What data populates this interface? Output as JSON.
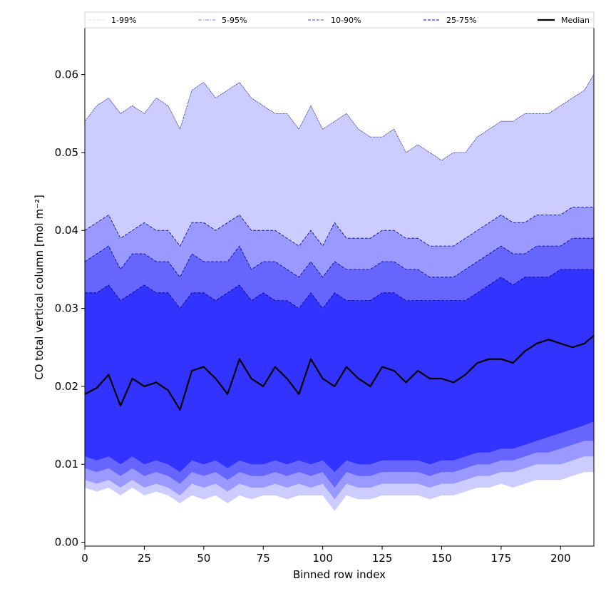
{
  "chart_data": {
    "type": "area",
    "xlabel": "Binned row index",
    "ylabel": "CO total vertical column [mol m⁻²]",
    "xlim": [
      0,
      214
    ],
    "ylim": [
      -0.0005,
      0.066
    ],
    "x_ticks": [
      0,
      25,
      50,
      75,
      100,
      125,
      150,
      175,
      200
    ],
    "x_tick_labels": [
      "0",
      "25",
      "50",
      "75",
      "100",
      "125",
      "150",
      "175",
      "200"
    ],
    "y_ticks": [
      0.0,
      0.01,
      0.02,
      0.03,
      0.04,
      0.05,
      0.06
    ],
    "y_tick_labels": [
      "0.00",
      "0.01",
      "0.02",
      "0.03",
      "0.04",
      "0.05",
      "0.06"
    ],
    "legend_position": "top",
    "legend": [
      {
        "label": "1-99%",
        "style": "dotted",
        "color": "#ccccff"
      },
      {
        "label": "5-95%",
        "style": "dashdot",
        "color": "#9999ff"
      },
      {
        "label": "10-90%",
        "style": "dashed",
        "color": "#6666ff"
      },
      {
        "label": "25-75%",
        "style": "dashed",
        "color": "#3333ff"
      },
      {
        "label": "Median",
        "style": "solid",
        "color": "#000000"
      }
    ],
    "x": [
      0,
      5,
      10,
      15,
      20,
      25,
      30,
      35,
      40,
      45,
      50,
      55,
      60,
      65,
      70,
      75,
      80,
      85,
      90,
      95,
      100,
      105,
      110,
      115,
      120,
      125,
      130,
      135,
      140,
      145,
      150,
      155,
      160,
      165,
      170,
      175,
      180,
      185,
      190,
      195,
      200,
      205,
      210,
      214
    ],
    "bands": [
      {
        "name": "1-99%",
        "color": "#ccccff",
        "upper": [
          0.054,
          0.056,
          0.057,
          0.055,
          0.056,
          0.055,
          0.057,
          0.056,
          0.053,
          0.058,
          0.059,
          0.057,
          0.058,
          0.059,
          0.057,
          0.056,
          0.055,
          0.055,
          0.053,
          0.056,
          0.053,
          0.054,
          0.055,
          0.053,
          0.052,
          0.052,
          0.053,
          0.05,
          0.051,
          0.05,
          0.049,
          0.05,
          0.05,
          0.052,
          0.053,
          0.054,
          0.054,
          0.055,
          0.055,
          0.055,
          0.056,
          0.057,
          0.058,
          0.06
        ],
        "lower": [
          0.007,
          0.0065,
          0.007,
          0.006,
          0.007,
          0.006,
          0.0065,
          0.006,
          0.005,
          0.006,
          0.0055,
          0.006,
          0.005,
          0.006,
          0.0055,
          0.006,
          0.006,
          0.0055,
          0.006,
          0.006,
          0.006,
          0.004,
          0.006,
          0.0055,
          0.0055,
          0.006,
          0.006,
          0.006,
          0.006,
          0.0055,
          0.006,
          0.006,
          0.0065,
          0.007,
          0.007,
          0.0075,
          0.007,
          0.0075,
          0.008,
          0.008,
          0.008,
          0.0085,
          0.009,
          0.009
        ]
      },
      {
        "name": "5-95%",
        "color": "#9999ff",
        "upper": [
          0.04,
          0.041,
          0.042,
          0.039,
          0.04,
          0.041,
          0.04,
          0.04,
          0.038,
          0.041,
          0.041,
          0.04,
          0.041,
          0.042,
          0.04,
          0.04,
          0.04,
          0.039,
          0.038,
          0.04,
          0.038,
          0.041,
          0.039,
          0.039,
          0.039,
          0.04,
          0.04,
          0.039,
          0.039,
          0.038,
          0.038,
          0.038,
          0.039,
          0.04,
          0.041,
          0.042,
          0.041,
          0.041,
          0.042,
          0.042,
          0.042,
          0.043,
          0.043,
          0.043
        ],
        "lower": [
          0.008,
          0.0075,
          0.008,
          0.007,
          0.008,
          0.007,
          0.0075,
          0.007,
          0.006,
          0.0075,
          0.007,
          0.0075,
          0.0065,
          0.0075,
          0.007,
          0.007,
          0.0075,
          0.007,
          0.0075,
          0.007,
          0.0075,
          0.0055,
          0.0075,
          0.007,
          0.007,
          0.0075,
          0.0075,
          0.0075,
          0.0075,
          0.007,
          0.0075,
          0.0075,
          0.008,
          0.0085,
          0.0085,
          0.009,
          0.009,
          0.0095,
          0.01,
          0.01,
          0.01,
          0.0105,
          0.011,
          0.011
        ]
      },
      {
        "name": "10-90%",
        "color": "#6666ff",
        "upper": [
          0.036,
          0.037,
          0.038,
          0.035,
          0.037,
          0.037,
          0.036,
          0.036,
          0.034,
          0.037,
          0.036,
          0.036,
          0.036,
          0.038,
          0.035,
          0.036,
          0.036,
          0.035,
          0.034,
          0.036,
          0.034,
          0.036,
          0.035,
          0.035,
          0.035,
          0.036,
          0.036,
          0.035,
          0.035,
          0.034,
          0.034,
          0.034,
          0.035,
          0.036,
          0.037,
          0.038,
          0.037,
          0.037,
          0.038,
          0.038,
          0.038,
          0.039,
          0.039,
          0.039
        ],
        "lower": [
          0.0095,
          0.009,
          0.0095,
          0.0085,
          0.0095,
          0.0085,
          0.009,
          0.0085,
          0.0075,
          0.009,
          0.0085,
          0.009,
          0.008,
          0.009,
          0.0085,
          0.0085,
          0.009,
          0.0085,
          0.009,
          0.0085,
          0.009,
          0.007,
          0.009,
          0.0085,
          0.0085,
          0.009,
          0.009,
          0.009,
          0.009,
          0.0085,
          0.009,
          0.009,
          0.0095,
          0.01,
          0.01,
          0.0105,
          0.0105,
          0.011,
          0.0115,
          0.0115,
          0.012,
          0.0125,
          0.013,
          0.013
        ]
      },
      {
        "name": "25-75%",
        "color": "#3333ff",
        "upper": [
          0.032,
          0.032,
          0.033,
          0.031,
          0.032,
          0.033,
          0.032,
          0.032,
          0.03,
          0.032,
          0.032,
          0.031,
          0.032,
          0.033,
          0.031,
          0.032,
          0.031,
          0.031,
          0.03,
          0.032,
          0.03,
          0.032,
          0.031,
          0.031,
          0.031,
          0.032,
          0.032,
          0.031,
          0.031,
          0.031,
          0.031,
          0.031,
          0.031,
          0.032,
          0.033,
          0.034,
          0.033,
          0.034,
          0.034,
          0.034,
          0.035,
          0.035,
          0.035,
          0.035
        ],
        "lower": [
          0.011,
          0.0105,
          0.011,
          0.01,
          0.011,
          0.01,
          0.0105,
          0.01,
          0.009,
          0.0105,
          0.01,
          0.0105,
          0.0095,
          0.0105,
          0.01,
          0.01,
          0.0105,
          0.01,
          0.0105,
          0.01,
          0.0105,
          0.009,
          0.0105,
          0.01,
          0.01,
          0.0105,
          0.0105,
          0.0105,
          0.0105,
          0.01,
          0.0105,
          0.0105,
          0.011,
          0.0115,
          0.0115,
          0.012,
          0.012,
          0.0125,
          0.013,
          0.0135,
          0.014,
          0.0145,
          0.015,
          0.0155
        ]
      }
    ],
    "median": {
      "name": "Median",
      "color": "#000000",
      "values": [
        0.019,
        0.0198,
        0.0215,
        0.0175,
        0.021,
        0.02,
        0.0205,
        0.0195,
        0.017,
        0.022,
        0.0225,
        0.021,
        0.019,
        0.0235,
        0.021,
        0.02,
        0.0225,
        0.021,
        0.019,
        0.0235,
        0.021,
        0.02,
        0.0225,
        0.021,
        0.02,
        0.0225,
        0.022,
        0.0205,
        0.022,
        0.021,
        0.021,
        0.0205,
        0.0215,
        0.023,
        0.0235,
        0.0235,
        0.023,
        0.0245,
        0.0255,
        0.026,
        0.0255,
        0.025,
        0.0255,
        0.0265
      ]
    }
  }
}
